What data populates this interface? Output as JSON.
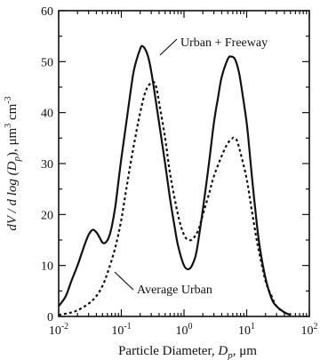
{
  "chart_data": {
    "type": "line",
    "x_scale": "log",
    "xlim": [
      0.01,
      100
    ],
    "ylim": [
      0,
      60
    ],
    "grid": false,
    "x_ticks": [
      0.01,
      0.1,
      1,
      10,
      100
    ],
    "x_tick_labels": [
      {
        "base": "10",
        "exp": "-2"
      },
      {
        "base": "10",
        "exp": "-1"
      },
      {
        "base": "10",
        "exp": "0"
      },
      {
        "base": "10",
        "exp": "1"
      },
      {
        "base": "10",
        "exp": "2"
      }
    ],
    "y_ticks": [
      0,
      10,
      20,
      30,
      40,
      50,
      60
    ],
    "y_tick_labels": [
      "0",
      "10",
      "20",
      "30",
      "40",
      "50",
      "60"
    ],
    "xlabel": {
      "prefix": "Particle  Diameter,  ",
      "var": "D",
      "sub": "p",
      "suffix": ",  μm"
    },
    "ylabel": {
      "text": "dV / d log (D",
      "sub": "p",
      "rest": "),  μm",
      "sup": "3",
      "tail": " cm",
      "sup2": "-3"
    },
    "series": [
      {
        "name": "Urban + Freeway",
        "style": "solid",
        "x": [
          0.01,
          0.013,
          0.016,
          0.02,
          0.025,
          0.03,
          0.035,
          0.04,
          0.045,
          0.05,
          0.056,
          0.063,
          0.07,
          0.08,
          0.09,
          0.1,
          0.12,
          0.14,
          0.16,
          0.2,
          0.22,
          0.25,
          0.28,
          0.32,
          0.4,
          0.5,
          0.6,
          0.7,
          0.8,
          1.0,
          1.2,
          1.4,
          1.6,
          2.0,
          2.5,
          3.0,
          3.5,
          4.0,
          5.0,
          5.6,
          6.5,
          7.5,
          8.5,
          10,
          11,
          12,
          14,
          16,
          20,
          25,
          30,
          40,
          50
        ],
        "y": [
          2,
          4,
          7,
          10,
          13.5,
          16,
          17,
          16.5,
          15.5,
          14.5,
          14.5,
          15.5,
          17.5,
          21.5,
          26.5,
          31,
          38,
          44,
          48.5,
          52.5,
          53,
          52,
          50,
          46,
          38,
          30,
          23,
          18,
          14,
          10,
          9.3,
          10.5,
          13,
          21,
          30,
          38,
          43,
          47,
          50.5,
          51,
          50.5,
          48,
          44,
          38,
          33,
          28,
          20,
          14,
          7.5,
          3.5,
          2,
          0.8,
          0.3
        ]
      },
      {
        "name": "Average Urban",
        "style": "dotted",
        "x": [
          0.01,
          0.015,
          0.02,
          0.03,
          0.04,
          0.05,
          0.06,
          0.08,
          0.1,
          0.12,
          0.15,
          0.2,
          0.25,
          0.32,
          0.36,
          0.4,
          0.5,
          0.6,
          0.8,
          1.0,
          1.2,
          1.4,
          1.7,
          2.0,
          2.5,
          3.0,
          4.0,
          5.0,
          6.0,
          6.3,
          7.0,
          8.0,
          10,
          12,
          15,
          20,
          25,
          30,
          40,
          50
        ],
        "y": [
          0.3,
          0.7,
          1.2,
          2.5,
          4,
          6,
          8.5,
          13.5,
          19,
          25,
          32,
          40,
          44.5,
          46,
          45,
          42,
          35,
          28,
          20,
          16,
          15,
          15.3,
          17,
          20,
          24,
          27.5,
          31.5,
          34,
          35,
          35,
          34.5,
          32,
          27,
          21,
          14,
          7,
          4,
          2,
          0.8,
          0.3
        ]
      }
    ],
    "annotations": [
      {
        "text": "Urban + Freeway"
      },
      {
        "text": "Average Urban"
      }
    ]
  }
}
